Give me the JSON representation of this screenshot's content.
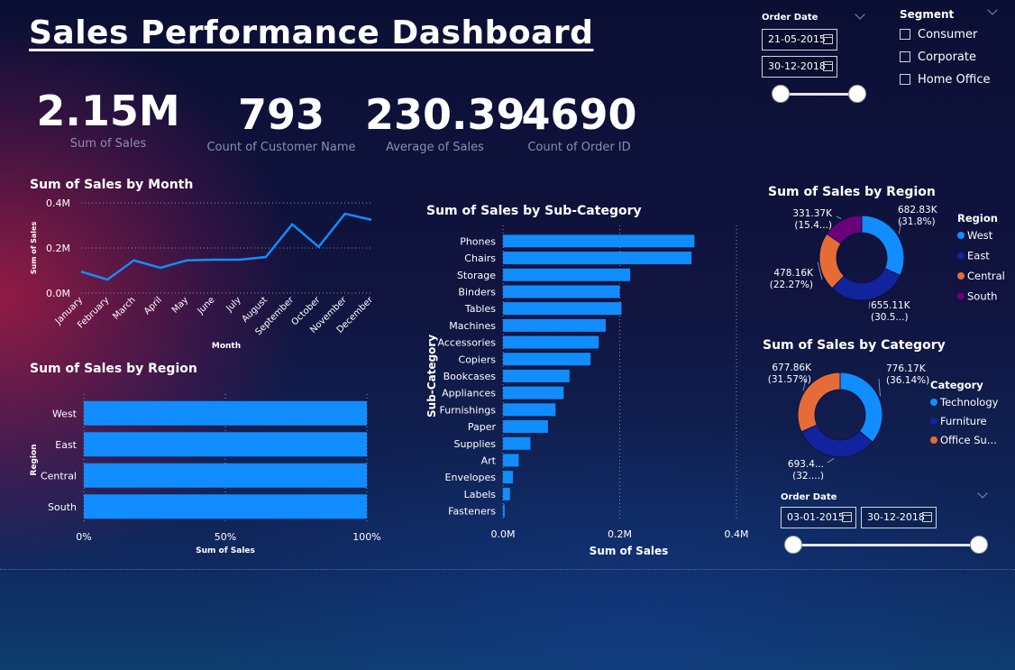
{
  "title": "Sales Performance Dashboard",
  "kpis": [
    {
      "value": "2.15M",
      "label": "Sum of Sales"
    },
    {
      "value": "793",
      "label": "Count of Customer Name"
    },
    {
      "value": "230.39",
      "label": "Average of Sales"
    },
    {
      "value": "4690",
      "label": "Count of Order ID"
    }
  ],
  "order_date_top": {
    "label": "Order Date",
    "start": "21-05-2015",
    "end": "30-12-2018"
  },
  "order_date_bottom": {
    "label": "Order Date",
    "start": "03-01-2015",
    "end": "30-12-2018"
  },
  "segment": {
    "label": "Segment",
    "options": [
      "Consumer",
      "Corporate",
      "Home Office"
    ]
  },
  "colors": {
    "bar": "#118dff",
    "west": "#118dff",
    "east": "#12239e",
    "central": "#e66c37",
    "south": "#6b007b"
  },
  "chart_data": [
    {
      "id": "month",
      "type": "line",
      "title": "Sum of Sales by Month",
      "xlabel": "Month",
      "ylabel": "Sum of Sales",
      "categories": [
        "January",
        "February",
        "March",
        "April",
        "May",
        "June",
        "July",
        "August",
        "September",
        "October",
        "November",
        "December"
      ],
      "values": [
        95000,
        60000,
        145000,
        112000,
        145000,
        148000,
        148000,
        160000,
        305000,
        205000,
        352000,
        325000
      ],
      "ylim": [
        0,
        400000
      ],
      "yticks": [
        "0.0M",
        "0.2M",
        "0.4M"
      ],
      "grid": true
    },
    {
      "id": "region_bar",
      "type": "bar",
      "orientation": "horizontal",
      "stacked_100": true,
      "title": "Sum of Sales by Region",
      "xlabel": "Sum of Sales",
      "ylabel": "Region",
      "categories": [
        "West",
        "East",
        "Central",
        "South"
      ],
      "values": [
        100,
        100,
        100,
        100
      ],
      "xticks": [
        "0%",
        "50%",
        "100%"
      ],
      "xlim": [
        0,
        100
      ]
    },
    {
      "id": "subcat",
      "type": "bar",
      "orientation": "horizontal",
      "title": "Sum of Sales by Sub-Category",
      "xlabel": "Sum of Sales",
      "ylabel": "Sub-Category",
      "categories": [
        "Phones",
        "Chairs",
        "Storage",
        "Binders",
        "Tables",
        "Machines",
        "Accessories",
        "Copiers",
        "Bookcases",
        "Appliances",
        "Furnishings",
        "Paper",
        "Supplies",
        "Art",
        "Envelopes",
        "Labels",
        "Fasteners"
      ],
      "values": [
        328000,
        323000,
        218000,
        200000,
        203000,
        176000,
        164000,
        150000,
        114000,
        104000,
        90000,
        77000,
        47000,
        27000,
        17000,
        12000,
        3000
      ],
      "xlim": [
        0,
        400000
      ],
      "xticks": [
        "0.0M",
        "0.2M",
        "0.4M"
      ]
    },
    {
      "id": "region_donut",
      "type": "pie",
      "donut": true,
      "title": "Sum of Sales by Region",
      "legend_title": "Region",
      "slices": [
        {
          "name": "West",
          "value": 31.8,
          "label": "682.83K (31.8%)",
          "color": "#118dff"
        },
        {
          "name": "East",
          "value": 30.5,
          "label": "655.11K (30.5...)",
          "color": "#12239e"
        },
        {
          "name": "Central",
          "value": 22.27,
          "label": "478.16K (22.27%)",
          "color": "#e66c37"
        },
        {
          "name": "South",
          "value": 15.4,
          "label": "331.37K (15.4...)",
          "color": "#6b007b"
        }
      ]
    },
    {
      "id": "category_donut",
      "type": "pie",
      "donut": true,
      "title": "Sum of Sales by Category",
      "legend_title": "Category",
      "slices": [
        {
          "name": "Technology",
          "value": 36.14,
          "label": "776.17K (36.14%)",
          "color": "#118dff"
        },
        {
          "name": "Furniture",
          "value": 32.29,
          "label": "693.4... (32....)",
          "color": "#12239e"
        },
        {
          "name": "Office Su...",
          "value": 31.57,
          "label": "677.86K (31.57%)",
          "color": "#e66c37"
        }
      ]
    }
  ]
}
